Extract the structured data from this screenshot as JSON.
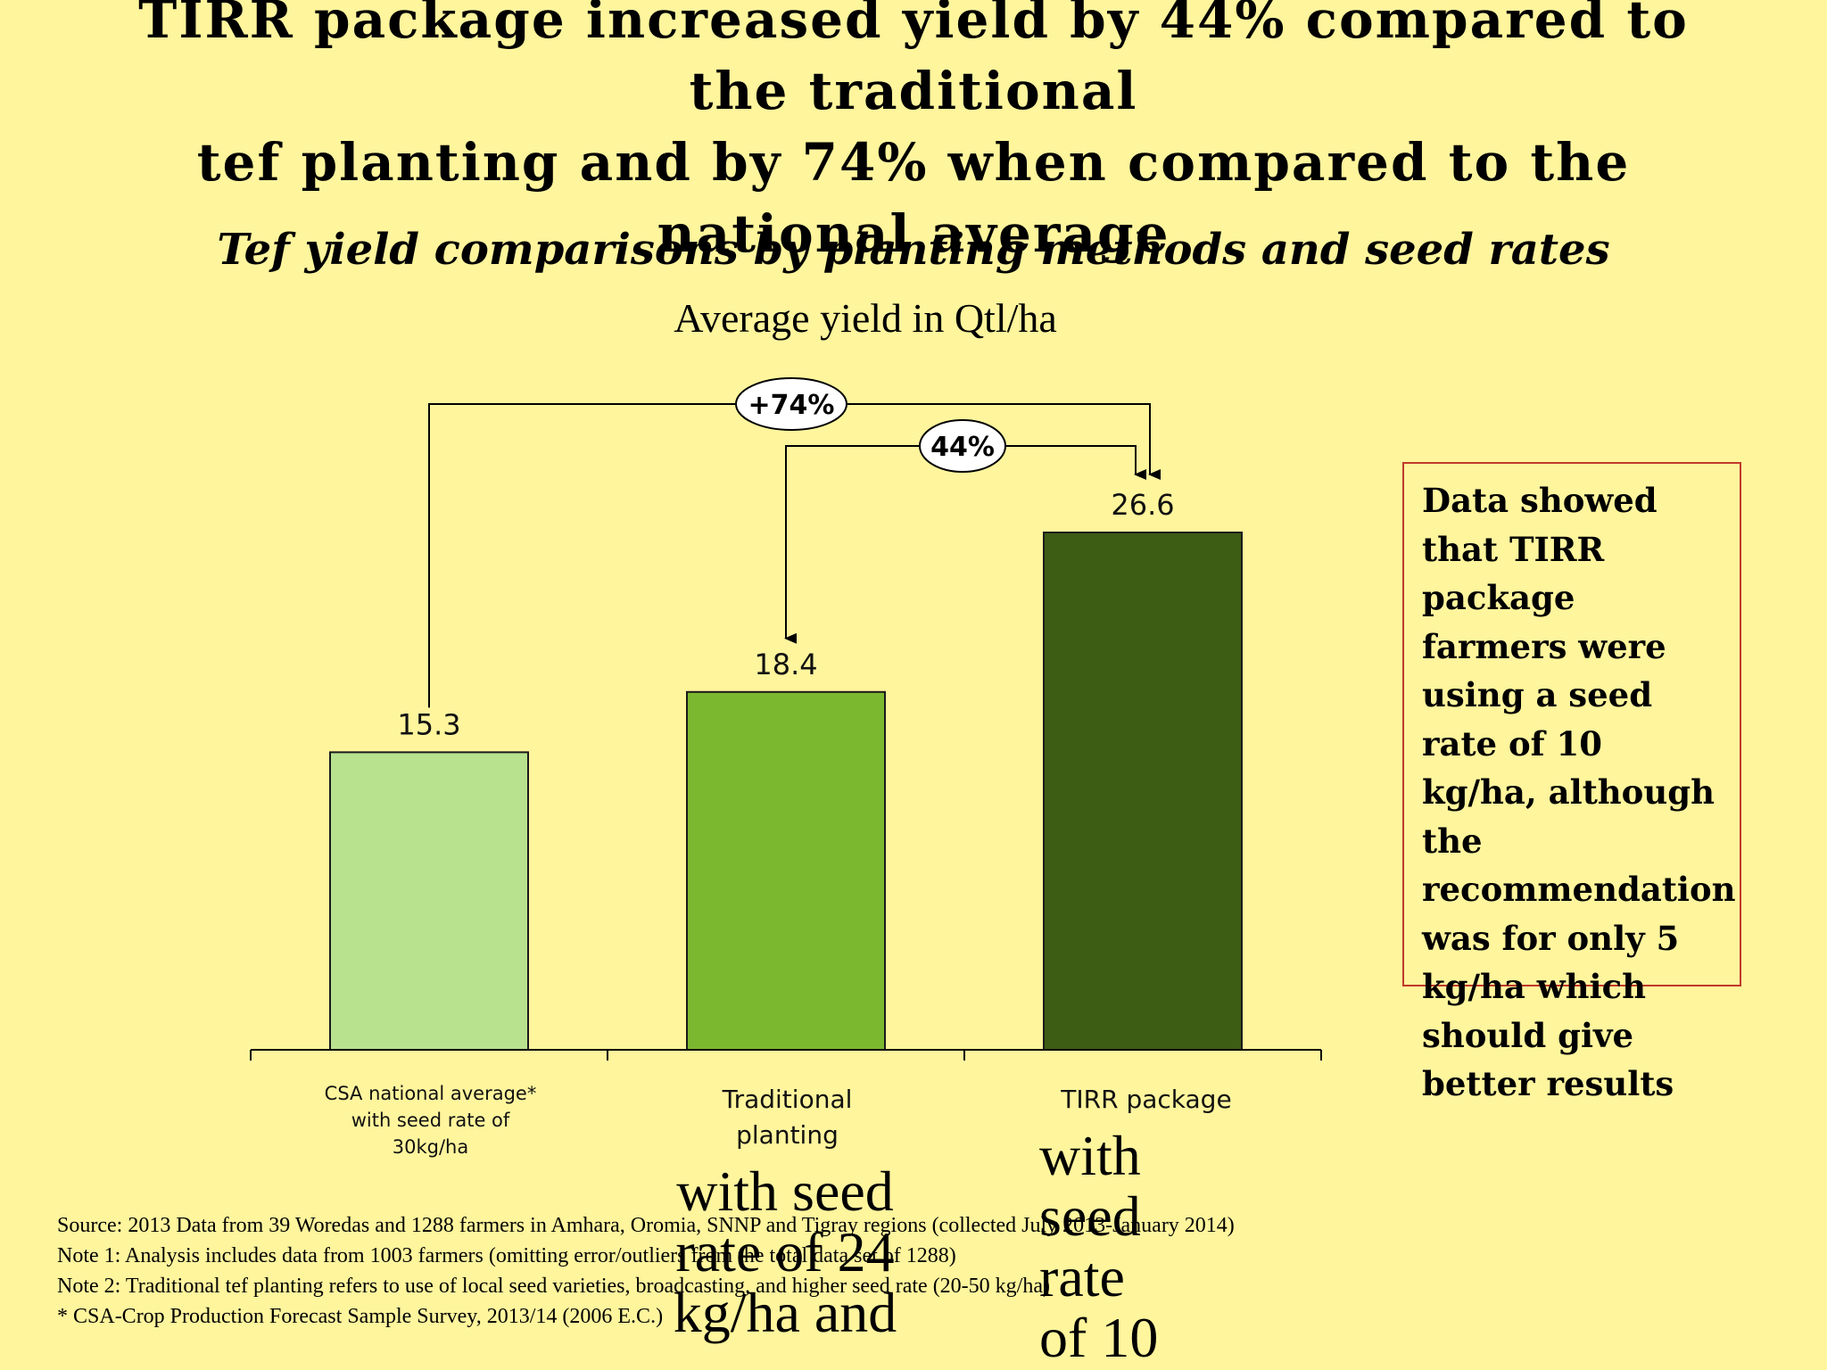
{
  "slide": {
    "title": "TIRR package increased yield by 44% compared to the traditional\ntef planting and by 74% when compared to the national average",
    "subtitle": "Tef yield comparisons by planting methods and seed rates",
    "callout": "Data showed that TIRR package farmers were using a seed rate of  10 kg/ha, although the recommendation was for only 5 kg/ha which should give better results",
    "notes": [
      "Source: 2013 Data from 39 Woredas and 1288 farmers in Amhara, Oromia, SNNP and Tigray regions (collected July 2013-January 2014)",
      "Note 1: Analysis includes data from 1003 farmers (omitting error/outliers from the total data set of 1288)",
      "Note 2: Traditional tef planting refers to use of local seed varieties, broadcasting, and higher seed rate (20-50 kg/ha)",
      "* CSA-Crop Production Forecast Sample Survey, 2013/14 (2006 E.C.)"
    ],
    "category_labels": {
      "csa": "CSA national average* with seed rate of 30kg/ha",
      "traditional": "Traditional planting",
      "tirr": "TIRR package"
    },
    "category_overflow": {
      "traditional": "with seed\nrate of 24\nkg/ha and",
      "tirr": "with\nseed\nrate\nof 10"
    }
  },
  "chart_data": {
    "type": "bar",
    "title": "Average yield in Qtl/ha",
    "categories": [
      "CSA national average*",
      "Traditional planting",
      "TIRR package"
    ],
    "values": [
      15.3,
      18.4,
      26.6
    ],
    "data_labels": [
      "15.3",
      "18.4",
      "26.6"
    ],
    "colors": [
      "#b9e28f",
      "#7cb82f",
      "#3d5c14"
    ],
    "ylim": [
      0,
      26.6
    ],
    "grid": false,
    "annotations": [
      {
        "label": "+74%",
        "from": "CSA national average*",
        "to": "TIRR package"
      },
      {
        "label": "44%",
        "from": "TIRR package",
        "to": "Traditional planting"
      }
    ]
  }
}
